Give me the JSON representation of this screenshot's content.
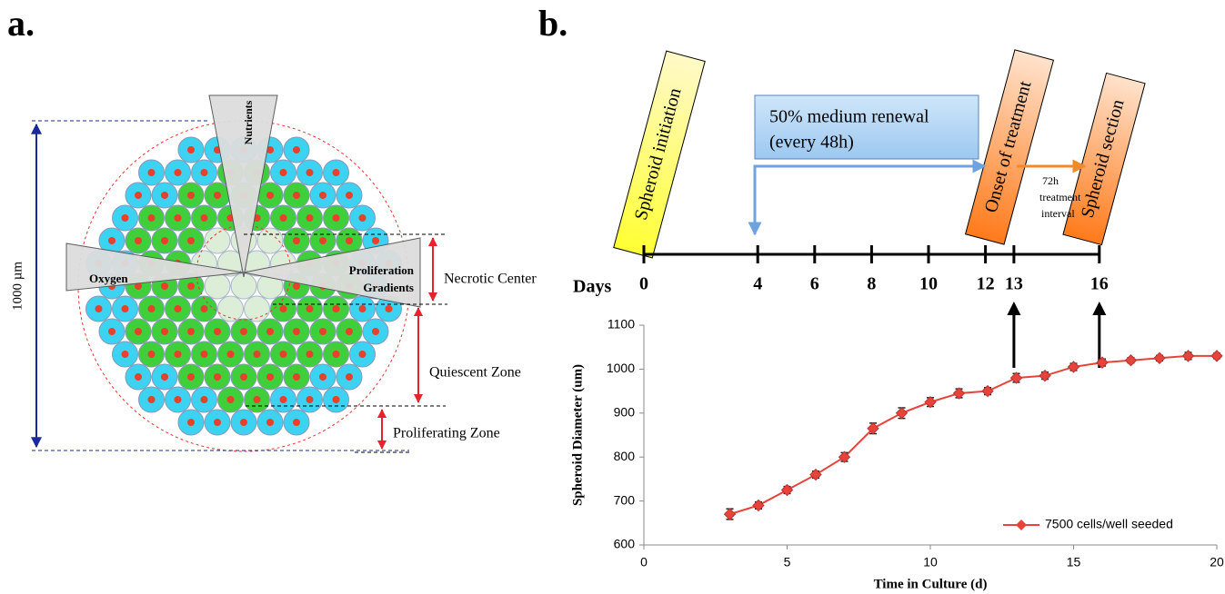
{
  "panel_labels": [
    "a.",
    "b."
  ],
  "diagram": {
    "scale_label": "1000 µm",
    "nutrients": "Nutrients",
    "oxygen": "Oxygen",
    "proliferation": [
      "Proliferation",
      "Gradients"
    ],
    "zones": [
      "Necrotic Center",
      "Quiescent Zone",
      "Proliferating Zone"
    ]
  },
  "timeline": {
    "label": "Days",
    "days": [
      0,
      4,
      6,
      8,
      10,
      12,
      13,
      16
    ],
    "initiation": "Spheroid initiation",
    "renewal": [
      "50% medium renewal",
      "(every 48h)"
    ],
    "treatment": "Onset of treatment",
    "section": "Spheroid section",
    "interval_note": [
      "72h",
      "treatment",
      "interval"
    ]
  },
  "chart_data": {
    "type": "line",
    "xlabel": "Time in Culture (d)",
    "ylabel": "Spheroid Diameter (um)",
    "x": [
      3,
      4,
      5,
      6,
      7,
      8,
      9,
      10,
      11,
      12,
      13,
      14,
      15,
      16,
      17,
      18,
      19,
      20
    ],
    "series": [
      {
        "name": "7500 cells/well seeded",
        "color": "#e8433a",
        "values": [
          670,
          690,
          725,
          760,
          800,
          865,
          900,
          925,
          945,
          950,
          980,
          985,
          1005,
          1015,
          1020,
          1025,
          1030,
          1030
        ],
        "errors": [
          12,
          8,
          8,
          8,
          10,
          12,
          12,
          10,
          10,
          8,
          10,
          8,
          8,
          8,
          6,
          6,
          8,
          6
        ]
      }
    ],
    "xlim": [
      0,
      20
    ],
    "ylim": [
      600,
      1100
    ],
    "xticks": [
      0,
      5,
      10,
      15,
      20
    ],
    "yticks": [
      600,
      700,
      800,
      900,
      1000,
      1100
    ],
    "legend": "lower right"
  }
}
